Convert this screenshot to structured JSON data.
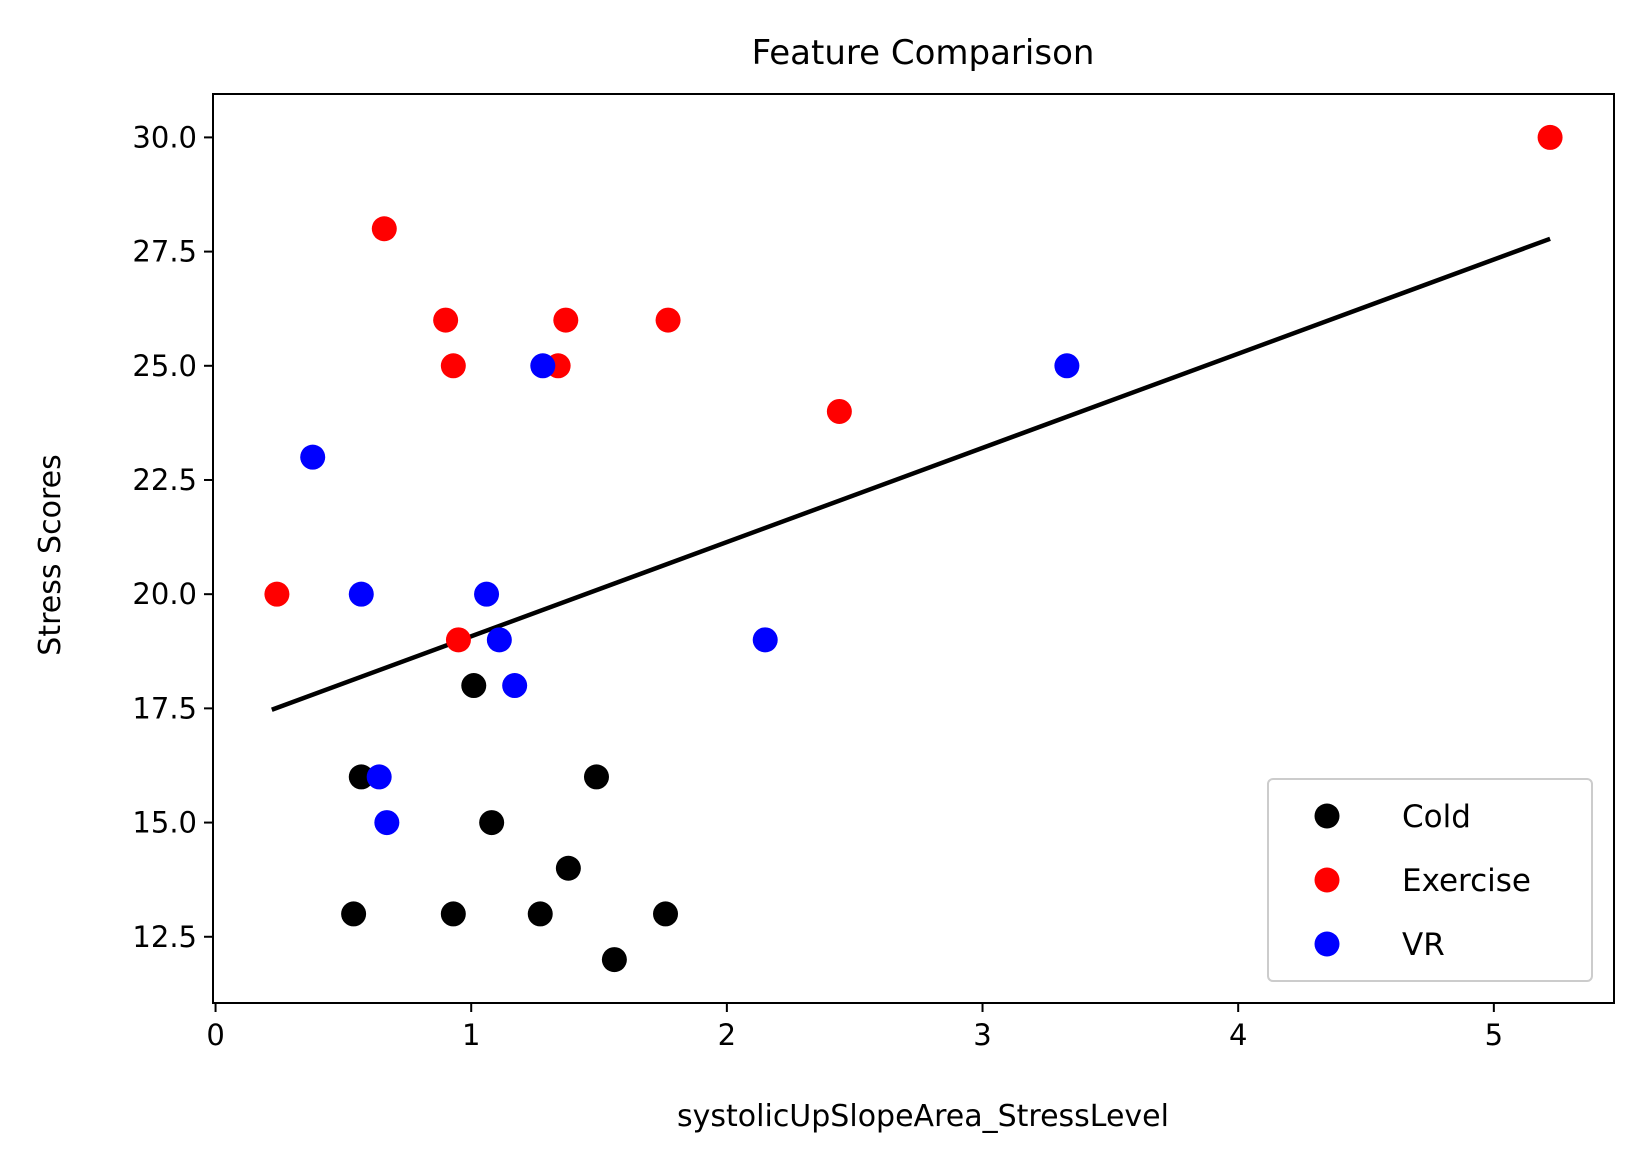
{
  "chart_data": {
    "type": "scatter",
    "title": "Feature Comparison",
    "xlabel": "systolicUpSlopeArea_StressLevel",
    "ylabel": "Stress Scores",
    "xlim": [
      -0.01,
      5.47
    ],
    "ylim": [
      11.05,
      30.95
    ],
    "x_ticks": [
      0,
      1,
      2,
      3,
      4,
      5
    ],
    "y_ticks": [
      12.5,
      15.0,
      17.5,
      20.0,
      22.5,
      25.0,
      27.5,
      30.0
    ],
    "x_tick_labels": [
      "0",
      "1",
      "2",
      "3",
      "4",
      "5"
    ],
    "y_tick_labels": [
      "12.5",
      "15.0",
      "17.5",
      "20.0",
      "22.5",
      "25.0",
      "27.5",
      "30.0"
    ],
    "grid": false,
    "legend_position": "lower-right",
    "series": [
      {
        "name": "Cold",
        "color": "#000000",
        "points": [
          {
            "x": 0.54,
            "y": 13
          },
          {
            "x": 0.93,
            "y": 13
          },
          {
            "x": 1.27,
            "y": 13
          },
          {
            "x": 1.76,
            "y": 13
          },
          {
            "x": 1.56,
            "y": 12
          },
          {
            "x": 1.38,
            "y": 14
          },
          {
            "x": 1.08,
            "y": 15
          },
          {
            "x": 0.57,
            "y": 16
          },
          {
            "x": 1.49,
            "y": 16
          },
          {
            "x": 1.01,
            "y": 18
          }
        ]
      },
      {
        "name": "Exercise",
        "color": "#ff0000",
        "points": [
          {
            "x": 5.22,
            "y": 30
          },
          {
            "x": 0.66,
            "y": 28
          },
          {
            "x": 0.9,
            "y": 26
          },
          {
            "x": 1.37,
            "y": 26
          },
          {
            "x": 1.77,
            "y": 26
          },
          {
            "x": 0.93,
            "y": 25
          },
          {
            "x": 1.34,
            "y": 25
          },
          {
            "x": 2.44,
            "y": 24
          },
          {
            "x": 0.24,
            "y": 20
          },
          {
            "x": 0.95,
            "y": 19
          }
        ]
      },
      {
        "name": "VR",
        "color": "#0000ff",
        "points": [
          {
            "x": 0.38,
            "y": 23
          },
          {
            "x": 1.28,
            "y": 25
          },
          {
            "x": 3.33,
            "y": 25
          },
          {
            "x": 0.57,
            "y": 20
          },
          {
            "x": 1.06,
            "y": 20
          },
          {
            "x": 1.11,
            "y": 19
          },
          {
            "x": 2.15,
            "y": 19
          },
          {
            "x": 1.17,
            "y": 18
          },
          {
            "x": 0.64,
            "y": 16
          },
          {
            "x": 0.67,
            "y": 15
          }
        ]
      }
    ],
    "trendline": {
      "color": "#000000",
      "points": [
        {
          "x": 0.22,
          "y": 17.47
        },
        {
          "x": 5.22,
          "y": 27.78
        }
      ]
    }
  }
}
